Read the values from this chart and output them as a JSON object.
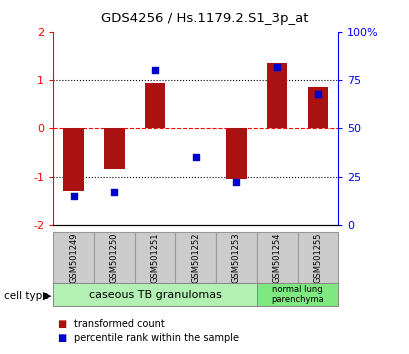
{
  "title": "GDS4256 / Hs.1179.2.S1_3p_at",
  "samples": [
    "GSM501249",
    "GSM501250",
    "GSM501251",
    "GSM501252",
    "GSM501253",
    "GSM501254",
    "GSM501255"
  ],
  "red_values": [
    -1.3,
    -0.85,
    0.93,
    0.0,
    -1.05,
    1.35,
    0.85
  ],
  "blue_values_pct": [
    15,
    17,
    80,
    35,
    22,
    82,
    68
  ],
  "ylim_left": [
    -2,
    2
  ],
  "ylim_right": [
    0,
    100
  ],
  "yticks_left": [
    -2,
    -1,
    0,
    1,
    2
  ],
  "yticks_right": [
    0,
    25,
    50,
    75,
    100
  ],
  "ytick_labels_right": [
    "0",
    "25",
    "50",
    "75",
    "100%"
  ],
  "group1_indices": [
    0,
    1,
    2,
    3,
    4
  ],
  "group2_indices": [
    5,
    6
  ],
  "group1_label": "caseous TB granulomas",
  "group2_label": "normal lung\nparenchyma",
  "group1_color": "#b3f0b3",
  "group2_color": "#80e880",
  "cell_type_label": "cell type",
  "legend_red": "transformed count",
  "legend_blue": "percentile rank within the sample",
  "bar_color": "#aa1111",
  "dot_color": "#0000cc",
  "bar_width": 0.5,
  "dot_size": 25,
  "sample_box_color": "#cccccc",
  "sample_box_edge": "#999999"
}
